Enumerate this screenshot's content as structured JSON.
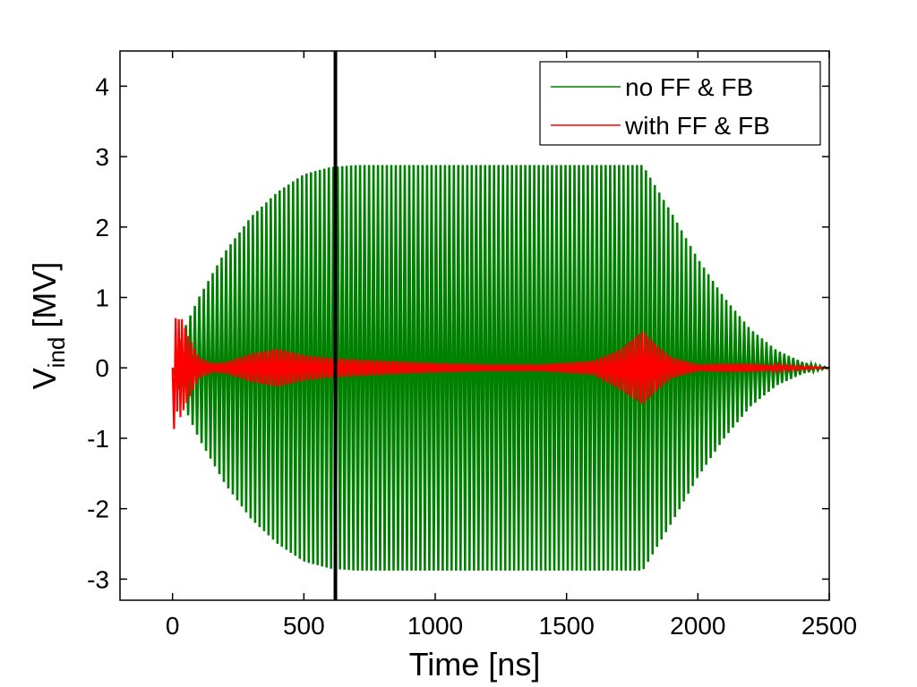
{
  "chart_data": {
    "type": "line",
    "xlabel": "Time [ns]",
    "ylabel_main": "V",
    "ylabel_sub": "ind",
    "ylabel_unit": " [MV]",
    "xlim": [
      -200,
      2500
    ],
    "ylim": [
      -3.3,
      4.5
    ],
    "xticks": [
      0,
      500,
      1000,
      1500,
      2000,
      2500
    ],
    "yticks": [
      -3,
      -2,
      -1,
      0,
      1,
      2,
      3,
      4
    ],
    "grid": false,
    "legend_position": "top-right",
    "vertical_marker_x": 620,
    "series": [
      {
        "name": "no FF & FB",
        "color": "#008000",
        "envelope": {
          "x": [
            0,
            50,
            100,
            200,
            300,
            400,
            500,
            600,
            700,
            1000,
            1500,
            1790,
            1900,
            2000,
            2100,
            2200,
            2300,
            2400,
            2500
          ],
          "upper": [
            0.0,
            0.6,
            1.0,
            1.65,
            2.15,
            2.5,
            2.75,
            2.85,
            2.88,
            2.88,
            2.88,
            2.88,
            2.2,
            1.55,
            1.0,
            0.55,
            0.25,
            0.08,
            0.0
          ],
          "lower": [
            0.0,
            -0.6,
            -1.0,
            -1.65,
            -2.15,
            -2.5,
            -2.75,
            -2.85,
            -2.88,
            -2.88,
            -2.88,
            -2.88,
            -2.2,
            -1.55,
            -1.0,
            -0.55,
            -0.25,
            -0.08,
            0.0
          ]
        }
      },
      {
        "name": "with FF & FB",
        "color": "#ff0000",
        "envelope": {
          "x": [
            0,
            5,
            15,
            30,
            60,
            100,
            150,
            200,
            300,
            400,
            500,
            600,
            700,
            800,
            1000,
            1200,
            1400,
            1600,
            1700,
            1790,
            1850,
            1900,
            2000,
            2100,
            2200,
            2300,
            2400,
            2500
          ],
          "upper": [
            0.0,
            0.95,
            0.6,
            0.75,
            0.45,
            0.15,
            0.07,
            0.08,
            0.2,
            0.27,
            0.18,
            0.14,
            0.12,
            0.1,
            0.07,
            0.05,
            0.05,
            0.1,
            0.25,
            0.52,
            0.3,
            0.15,
            0.05,
            0.06,
            0.06,
            0.04,
            0.02,
            0.0
          ],
          "lower": [
            0.0,
            -0.9,
            -0.6,
            -0.7,
            -0.45,
            -0.15,
            -0.07,
            -0.08,
            -0.2,
            -0.27,
            -0.18,
            -0.14,
            -0.12,
            -0.1,
            -0.07,
            -0.05,
            -0.05,
            -0.1,
            -0.3,
            -0.52,
            -0.3,
            -0.15,
            -0.05,
            -0.06,
            -0.06,
            -0.04,
            -0.02,
            0.0
          ]
        }
      }
    ]
  }
}
